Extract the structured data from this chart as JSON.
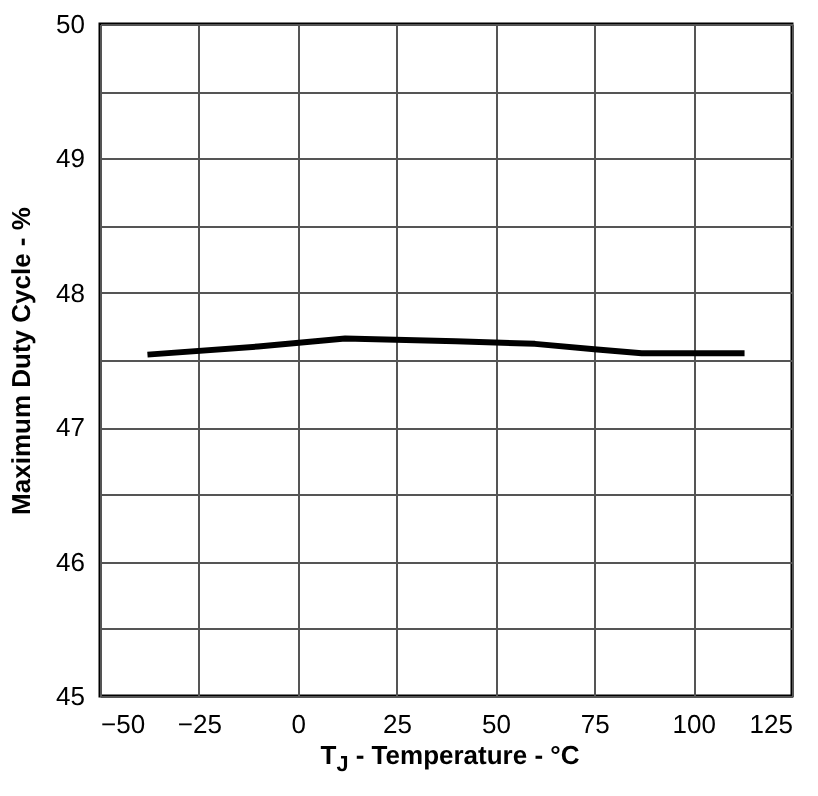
{
  "chart_data": {
    "type": "line",
    "xlabel": "T$_{J}$ - Temperature - °C",
    "ylabel": "Maximum Duty Cycle - %",
    "x": [
      -38,
      -10,
      12,
      40,
      60,
      75,
      87,
      113
    ],
    "series": [
      {
        "color": "#000000",
        "values": [
          47.54,
          47.6,
          47.66,
          47.64,
          47.62,
          47.58,
          47.55,
          47.55
        ]
      }
    ],
    "xlim": [
      -50,
      125
    ],
    "xticks": [
      -50,
      -25,
      0,
      25,
      50,
      75,
      100,
      125
    ],
    "ylim": [
      45,
      50
    ],
    "yticks": [
      45,
      {
        "value": 45.5,
        "label": null
      },
      46,
      {
        "value": 46.5,
        "label": null
      },
      47,
      {
        "value": 47.5,
        "label": null
      },
      48,
      {
        "value": 48.5,
        "label": null
      },
      49,
      {
        "value": 49.5,
        "label": null
      },
      50
    ],
    "grid": true,
    "marker": "none",
    "line_style": "solid"
  }
}
